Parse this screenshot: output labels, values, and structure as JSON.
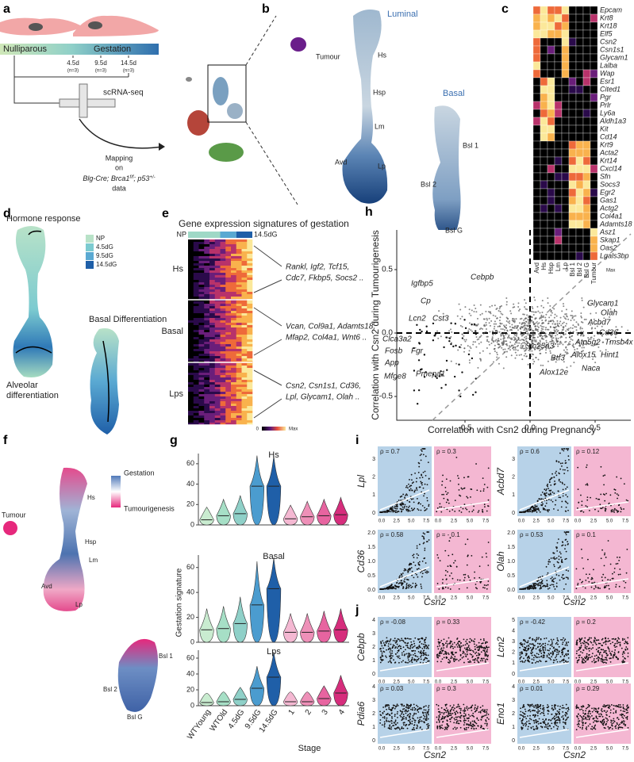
{
  "letters": {
    "a": "a",
    "b": "b",
    "c": "c",
    "d": "d",
    "e": "e",
    "f": "f",
    "g": "g",
    "h": "h",
    "i": "i",
    "j": "j"
  },
  "a": {
    "nulliparous": "Nulliparous",
    "gestation": "Gestation",
    "timepoints": [
      {
        "day": "4.5d",
        "n": "(n=3)"
      },
      {
        "day": "9.5d",
        "n": "(n=3)"
      },
      {
        "day": "14.5d",
        "n": "(n=3)"
      }
    ],
    "method": "scRNA-seq",
    "mapping": "Mapping",
    "on": "on",
    "model": [
      "Blg-Cre; Brca1",
      "f/f",
      ";  p53",
      "+/-"
    ],
    "model_tail": "data"
  },
  "b": {
    "tumour": "Tumour",
    "luminal": "Luminal",
    "basal": "Basal",
    "clusters": [
      "Hs",
      "Hsp",
      "Lm",
      "Avd",
      "Lp",
      "Bsl 1",
      "Bsl 2",
      "Bsl G"
    ]
  },
  "c": {
    "genes": [
      "Epcam",
      "Krt8",
      "Krt18",
      "Elf5",
      "Csn2",
      "Csn1s1",
      "Glycam1",
      "Lalba",
      "Wap",
      "Esr1",
      "Cited1",
      "Pgr",
      "Prlr",
      "Ly6a",
      "Aldh1a3",
      "Kit",
      "Cd14",
      "Krt9",
      "Acta2",
      "Krt14",
      "Cxcl14",
      "Sfn",
      "Socs3",
      "Egr2",
      "Gas1",
      "Actg2",
      "Col4a1",
      "Adamts18",
      "Asz1",
      "Skap1",
      "Oas2",
      "Lgals3bp"
    ],
    "columns": [
      "Avd",
      "Hs",
      "Hsp",
      "Lm",
      "Lp",
      "Bsl 1",
      "Bsl 2",
      "Bsl G",
      "Tumour"
    ],
    "legend": [
      "0",
      "Max"
    ]
  },
  "d": {
    "hormone": "Hormone response",
    "alveolar": [
      "Alveolar",
      "differentiation"
    ],
    "basal": "Basal Differentiation",
    "legend": [
      "NP",
      "4.5dG",
      "9.5dG",
      "14.5dG"
    ]
  },
  "e": {
    "title": "Gene expression signatures of gestation",
    "start": "NP",
    "end": "14.5dG",
    "rows": [
      "Hs",
      "Basal",
      "Lps"
    ],
    "genes": [
      [
        "Rankl, Igf2, Tcf15,",
        "Cdc7, Fkbp5, Socs2 .."
      ],
      [
        "Vcan, Col9a1, Adamts18,",
        "Mfap2, Col4a1, Wnt6 .."
      ],
      [
        "Csn2, Csn1s1, Cd36,",
        "Lpl, Glycam1, Olah .."
      ]
    ],
    "legend": [
      "0",
      "Max"
    ]
  },
  "f": {
    "tumour": "Tumour",
    "clusters": [
      "Hs",
      "Hsp",
      "Lm",
      "Avd",
      "Lp",
      "Bsl 1",
      "Bsl 2",
      "Bsl G"
    ],
    "legend": [
      "Gestation",
      "Tumourigenesis"
    ]
  },
  "g": {
    "ylabel": "Gestation signature",
    "panels": [
      "Hs",
      "Basal",
      "Lps"
    ],
    "yticks": [
      "0",
      "20",
      "40",
      "60"
    ],
    "groups": [
      "WTYoung",
      "WTOld",
      "4.5dG",
      "9.5dG",
      "14.5dG",
      "1",
      "2",
      "3",
      "4"
    ],
    "stage": "Stage"
  },
  "h": {
    "xlabel": "Correlation with Csn2 during Pregnancy",
    "ylabel": "Correlation with Csn2 during Tumourigenesis",
    "xticks": [
      "-0.5",
      "0.0",
      "0.5"
    ],
    "yticks": [
      "0.5",
      "0.0",
      "-0.5"
    ],
    "genes": [
      "Igfbp5",
      "Cp",
      "Cebpb",
      "Lcn2",
      "Cst3",
      "Clca3a2",
      "Fosb",
      "Fgr",
      "App",
      "Pmepa1",
      "Mfge8",
      "Glycam1",
      "Olah",
      "Acbd7",
      "Cd36",
      "Atp5g2",
      "Tmsb4x",
      "Slc25a3",
      "Alox15",
      "Hint1",
      "Btf3",
      "Naca",
      "Alox12e"
    ]
  },
  "i": {
    "xlabel": "Csn2",
    "xticks": [
      "0.0",
      "2.5",
      "5.0",
      "7.5"
    ],
    "plots": [
      {
        "gene": "Lpl",
        "yticks": [
          "0",
          "1",
          "2",
          "3"
        ],
        "rho": [
          "ρ = 0.7",
          "ρ = 0.3"
        ]
      },
      {
        "gene": "Acbd7",
        "yticks": [
          "0",
          "1",
          "2",
          "3"
        ],
        "rho": [
          "ρ = 0.6",
          "ρ = 0.12"
        ]
      },
      {
        "gene": "Cd36",
        "yticks": [
          "0.0",
          "0.5",
          "1.0",
          "1.5",
          "2.0"
        ],
        "rho": [
          "ρ = 0.58",
          "ρ = - 0.1"
        ]
      },
      {
        "gene": "Olah",
        "yticks": [
          "0.0",
          "0.5",
          "1.0",
          "1.5",
          "2.0"
        ],
        "rho": [
          "ρ = 0.53",
          "ρ = 0.1"
        ]
      }
    ]
  },
  "j": {
    "xlabel": "Csn2",
    "xticks": [
      "0.0",
      "2.5",
      "5.0",
      "7.5"
    ],
    "plots": [
      {
        "gene": "Cebpb",
        "yticks": [
          "0",
          "1",
          "2",
          "3",
          "4"
        ],
        "rho": [
          "ρ = -0.08",
          "ρ = 0.33"
        ]
      },
      {
        "gene": "Lcn2",
        "yticks": [
          "0",
          "1",
          "2",
          "3",
          "4",
          "5"
        ],
        "rho": [
          "ρ = -0.42",
          "ρ = 0.2"
        ]
      },
      {
        "gene": "Pdia6",
        "yticks": [
          "0",
          "1",
          "2",
          "3",
          "4"
        ],
        "rho": [
          "ρ = 0.03",
          "ρ = 0.3"
        ]
      },
      {
        "gene": "Eno1",
        "yticks": [
          "0",
          "1",
          "2",
          "3",
          "4"
        ],
        "rho": [
          "ρ = 0.01",
          "ρ = 0.29"
        ]
      }
    ]
  }
}
